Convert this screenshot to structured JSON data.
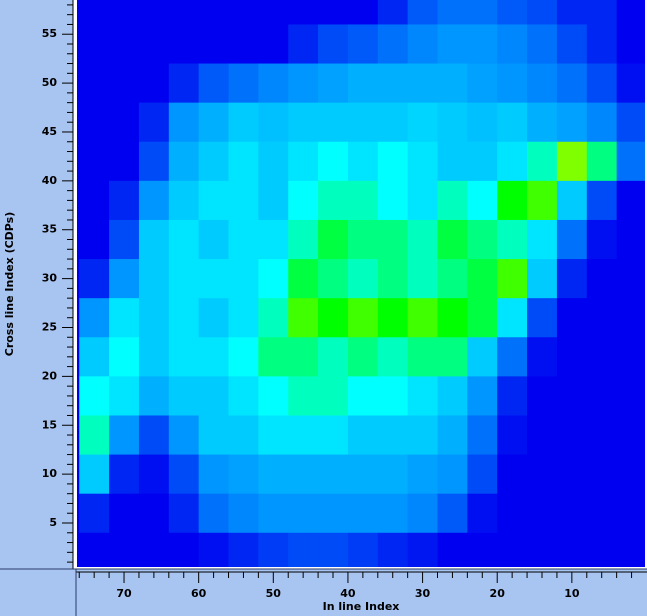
{
  "chart_data": {
    "type": "heatmap",
    "x_label": "In line Index",
    "y_label": "Cross line Index (CDPs)",
    "xlim": [
      76.3,
      0.2
    ],
    "ylim": [
      0.5,
      58.5
    ],
    "xticks": [
      70,
      60,
      50,
      40,
      30,
      20,
      10
    ],
    "yticks": [
      5,
      10,
      15,
      20,
      25,
      30,
      35,
      40,
      45,
      50,
      55
    ],
    "xminorticks": [
      76,
      74,
      72,
      68,
      66,
      64,
      62,
      58,
      56,
      54,
      52,
      48,
      46,
      44,
      42,
      38,
      36,
      34,
      32,
      28,
      26,
      24,
      22,
      18,
      16,
      14,
      12,
      8,
      6,
      4,
      2
    ],
    "yminorticks": [
      1,
      2,
      3,
      4,
      6,
      7,
      8,
      9,
      11,
      12,
      13,
      14,
      16,
      17,
      18,
      19,
      21,
      22,
      23,
      24,
      26,
      27,
      28,
      29,
      31,
      32,
      33,
      34,
      36,
      37,
      38,
      39,
      41,
      42,
      43,
      44,
      46,
      47,
      48,
      49,
      51,
      52,
      53,
      54,
      56,
      57,
      58
    ],
    "background": "#0000f0",
    "panel_color": "#a8c4f0",
    "colormap": [
      "#0000f0",
      "#0096ff",
      "#00ffff",
      "#00ff00",
      "#ffff00",
      "#ff0000"
    ],
    "x": [
      74,
      70,
      66,
      62,
      58,
      54,
      50,
      46,
      42,
      38,
      34,
      30,
      26,
      22,
      18,
      14,
      10,
      6,
      2
    ],
    "y": [
      58,
      54,
      50,
      46,
      42,
      38,
      34,
      30,
      26,
      22,
      18,
      14,
      10,
      6,
      2
    ],
    "values": [
      [
        0,
        0,
        0,
        0,
        0,
        0,
        0,
        0,
        0,
        0,
        0.05,
        0.12,
        0.15,
        0.15,
        0.12,
        0.1,
        0.05,
        0.05,
        0
      ],
      [
        0,
        0,
        0,
        0,
        0,
        0,
        0,
        0.05,
        0.1,
        0.12,
        0.15,
        0.18,
        0.2,
        0.2,
        0.18,
        0.15,
        0.1,
        0.05,
        0
      ],
      [
        0,
        0,
        0,
        0.05,
        0.12,
        0.15,
        0.18,
        0.2,
        0.22,
        0.25,
        0.25,
        0.25,
        0.25,
        0.22,
        0.2,
        0.18,
        0.15,
        0.1,
        0.02
      ],
      [
        0,
        0,
        0.05,
        0.2,
        0.25,
        0.3,
        0.28,
        0.3,
        0.3,
        0.3,
        0.3,
        0.32,
        0.3,
        0.28,
        0.3,
        0.25,
        0.22,
        0.18,
        0.1
      ],
      [
        0,
        0,
        0.1,
        0.25,
        0.3,
        0.35,
        0.3,
        0.35,
        0.4,
        0.35,
        0.4,
        0.35,
        0.3,
        0.3,
        0.35,
        0.45,
        0.7,
        0.5,
        0.15
      ],
      [
        0,
        0.05,
        0.2,
        0.3,
        0.35,
        0.35,
        0.3,
        0.4,
        0.45,
        0.45,
        0.4,
        0.35,
        0.45,
        0.4,
        0.6,
        0.65,
        0.3,
        0.1,
        0
      ],
      [
        0,
        0.1,
        0.3,
        0.35,
        0.3,
        0.35,
        0.35,
        0.45,
        0.55,
        0.5,
        0.5,
        0.45,
        0.55,
        0.5,
        0.45,
        0.35,
        0.15,
        0.02,
        0
      ],
      [
        0.05,
        0.2,
        0.3,
        0.35,
        0.35,
        0.35,
        0.4,
        0.55,
        0.5,
        0.45,
        0.5,
        0.45,
        0.5,
        0.55,
        0.65,
        0.3,
        0.05,
        0,
        0
      ],
      [
        0.2,
        0.35,
        0.3,
        0.35,
        0.3,
        0.35,
        0.45,
        0.65,
        0.6,
        0.65,
        0.6,
        0.65,
        0.6,
        0.55,
        0.35,
        0.1,
        0,
        0,
        0
      ],
      [
        0.3,
        0.4,
        0.3,
        0.35,
        0.35,
        0.4,
        0.5,
        0.5,
        0.45,
        0.5,
        0.45,
        0.5,
        0.5,
        0.3,
        0.15,
        0.02,
        0,
        0,
        0
      ],
      [
        0.4,
        0.35,
        0.25,
        0.3,
        0.3,
        0.35,
        0.4,
        0.45,
        0.45,
        0.4,
        0.4,
        0.35,
        0.3,
        0.2,
        0.05,
        0,
        0,
        0,
        0
      ],
      [
        0.45,
        0.2,
        0.1,
        0.2,
        0.3,
        0.3,
        0.35,
        0.35,
        0.35,
        0.3,
        0.3,
        0.3,
        0.25,
        0.15,
        0.02,
        0,
        0,
        0,
        0
      ],
      [
        0.3,
        0.05,
        0.02,
        0.1,
        0.2,
        0.22,
        0.25,
        0.25,
        0.25,
        0.25,
        0.25,
        0.22,
        0.2,
        0.1,
        0,
        0,
        0,
        0,
        0
      ],
      [
        0.05,
        0,
        0,
        0.05,
        0.15,
        0.18,
        0.2,
        0.2,
        0.2,
        0.2,
        0.2,
        0.18,
        0.12,
        0.02,
        0,
        0,
        0,
        0,
        0
      ],
      [
        0,
        0,
        0,
        0,
        0.02,
        0.05,
        0.08,
        0.1,
        0.1,
        0.08,
        0.05,
        0.03,
        0,
        0,
        0,
        0,
        0,
        0,
        0
      ]
    ]
  }
}
